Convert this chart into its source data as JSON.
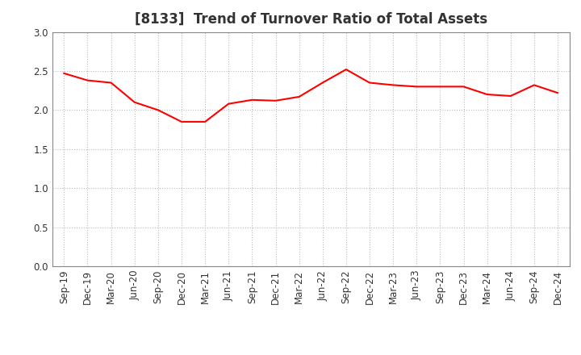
{
  "title": "[8133]  Trend of Turnover Ratio of Total Assets",
  "x_labels": [
    "Sep-19",
    "Dec-19",
    "Mar-20",
    "Jun-20",
    "Sep-20",
    "Dec-20",
    "Mar-21",
    "Jun-21",
    "Sep-21",
    "Dec-21",
    "Mar-22",
    "Jun-22",
    "Sep-22",
    "Dec-22",
    "Mar-23",
    "Jun-23",
    "Sep-23",
    "Dec-23",
    "Mar-24",
    "Jun-24",
    "Sep-24",
    "Dec-24"
  ],
  "values": [
    2.47,
    2.38,
    2.35,
    2.1,
    2.0,
    1.85,
    1.85,
    2.08,
    2.13,
    2.12,
    2.17,
    2.35,
    2.52,
    2.35,
    2.32,
    2.3,
    2.3,
    2.3,
    2.2,
    2.18,
    2.32,
    2.22
  ],
  "line_color": "#FF0000",
  "line_width": 1.5,
  "ylim": [
    0.0,
    3.0
  ],
  "yticks": [
    0.0,
    0.5,
    1.0,
    1.5,
    2.0,
    2.5,
    3.0
  ],
  "background_color": "#FFFFFF",
  "plot_bg_color": "#FFFFFF",
  "grid_color": "#BBBBBB",
  "title_fontsize": 12,
  "tick_fontsize": 8.5,
  "title_color": "#333333"
}
